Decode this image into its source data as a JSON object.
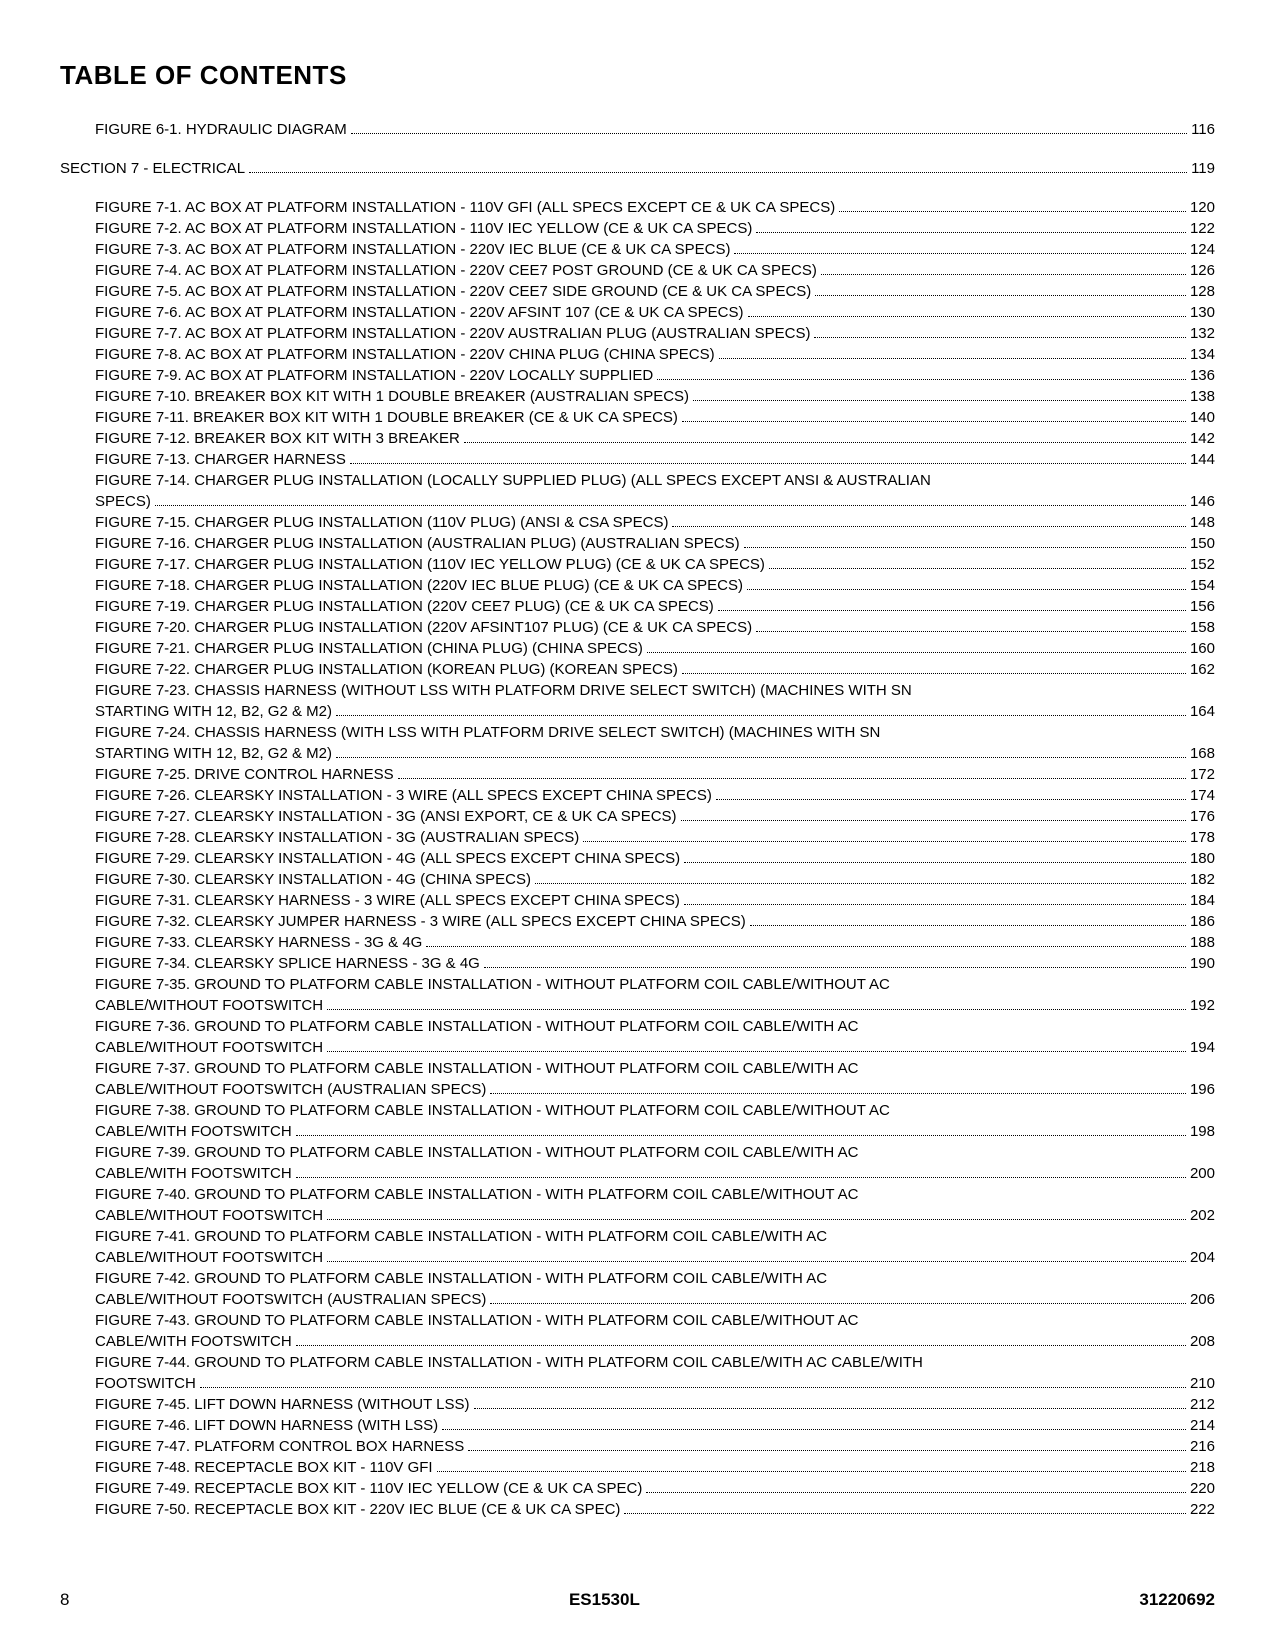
{
  "title": "TABLE OF CONTENTS",
  "entries": [
    {
      "indent": 1,
      "text": "FIGURE 6-1. HYDRAULIC DIAGRAM",
      "page": "116"
    },
    {
      "gap": true
    },
    {
      "indent": 0,
      "text": "SECTION 7 - ELECTRICAL",
      "page": "119"
    },
    {
      "gap": true
    },
    {
      "indent": 1,
      "text": "FIGURE 7-1. AC BOX AT PLATFORM INSTALLATION - 110V GFI (ALL SPECS EXCEPT CE & UK CA SPECS)",
      "page": "120"
    },
    {
      "indent": 1,
      "text": "FIGURE 7-2. AC BOX AT PLATFORM INSTALLATION - 110V IEC YELLOW (CE & UK CA SPECS)",
      "page": "122"
    },
    {
      "indent": 1,
      "text": "FIGURE 7-3. AC BOX AT PLATFORM INSTALLATION - 220V IEC BLUE (CE & UK CA SPECS)",
      "page": "124"
    },
    {
      "indent": 1,
      "text": "FIGURE 7-4. AC BOX AT PLATFORM INSTALLATION - 220V CEE7 POST GROUND (CE & UK CA SPECS)",
      "page": "126"
    },
    {
      "indent": 1,
      "text": "FIGURE 7-5. AC BOX AT PLATFORM INSTALLATION - 220V CEE7 SIDE GROUND (CE & UK CA SPECS)",
      "page": "128"
    },
    {
      "indent": 1,
      "text": "FIGURE 7-6. AC BOX AT PLATFORM INSTALLATION - 220V AFSINT 107 (CE & UK CA SPECS)",
      "page": "130"
    },
    {
      "indent": 1,
      "text": "FIGURE 7-7. AC BOX AT PLATFORM INSTALLATION - 220V AUSTRALIAN PLUG (AUSTRALIAN SPECS)",
      "page": "132"
    },
    {
      "indent": 1,
      "text": "FIGURE 7-8. AC BOX AT PLATFORM INSTALLATION - 220V CHINA PLUG (CHINA SPECS)",
      "page": "134"
    },
    {
      "indent": 1,
      "text": "FIGURE 7-9. AC BOX AT PLATFORM INSTALLATION - 220V LOCALLY SUPPLIED",
      "page": "136"
    },
    {
      "indent": 1,
      "text": "FIGURE 7-10. BREAKER BOX KIT WITH 1 DOUBLE BREAKER (AUSTRALIAN SPECS)",
      "page": "138"
    },
    {
      "indent": 1,
      "text": "FIGURE 7-11. BREAKER BOX KIT WITH 1 DOUBLE BREAKER (CE & UK CA SPECS)",
      "page": "140"
    },
    {
      "indent": 1,
      "text": "FIGURE 7-12. BREAKER BOX KIT WITH 3 BREAKER",
      "page": "142"
    },
    {
      "indent": 1,
      "text": "FIGURE 7-13. CHARGER HARNESS",
      "page": "144"
    },
    {
      "indent": 1,
      "wrap": true,
      "line1": "FIGURE 7-14. CHARGER PLUG INSTALLATION (LOCALLY SUPPLIED PLUG) (ALL SPECS EXCEPT ANSI & AUSTRALIAN",
      "line2": "SPECS)",
      "page": "146"
    },
    {
      "indent": 1,
      "text": "FIGURE 7-15. CHARGER PLUG INSTALLATION (110V PLUG) (ANSI & CSA SPECS)",
      "page": "148"
    },
    {
      "indent": 1,
      "text": "FIGURE 7-16. CHARGER PLUG INSTALLATION (AUSTRALIAN PLUG) (AUSTRALIAN SPECS)",
      "page": "150"
    },
    {
      "indent": 1,
      "text": "FIGURE 7-17. CHARGER PLUG INSTALLATION (110V IEC YELLOW PLUG) (CE & UK CA SPECS)",
      "page": "152"
    },
    {
      "indent": 1,
      "text": "FIGURE 7-18. CHARGER PLUG INSTALLATION (220V IEC BLUE PLUG) (CE & UK CA SPECS)",
      "page": "154"
    },
    {
      "indent": 1,
      "text": "FIGURE 7-19. CHARGER PLUG INSTALLATION (220V CEE7 PLUG) (CE & UK CA SPECS)",
      "page": "156"
    },
    {
      "indent": 1,
      "text": "FIGURE 7-20. CHARGER PLUG INSTALLATION (220V AFSINT107 PLUG) (CE & UK CA SPECS)",
      "page": "158"
    },
    {
      "indent": 1,
      "text": "FIGURE 7-21. CHARGER PLUG INSTALLATION (CHINA PLUG) (CHINA SPECS)",
      "page": "160"
    },
    {
      "indent": 1,
      "text": "FIGURE 7-22. CHARGER PLUG INSTALLATION (KOREAN PLUG) (KOREAN SPECS)",
      "page": "162"
    },
    {
      "indent": 1,
      "wrap": true,
      "line1": "FIGURE 7-23. CHASSIS HARNESS (WITHOUT LSS WITH PLATFORM DRIVE SELECT SWITCH) (MACHINES WITH SN",
      "line2": "STARTING WITH 12, B2, G2 & M2)",
      "page": "164"
    },
    {
      "indent": 1,
      "wrap": true,
      "line1": "FIGURE 7-24. CHASSIS HARNESS (WITH LSS WITH PLATFORM DRIVE SELECT SWITCH) (MACHINES WITH SN",
      "line2": "STARTING WITH 12, B2, G2 & M2)",
      "page": "168"
    },
    {
      "indent": 1,
      "text": "FIGURE 7-25. DRIVE CONTROL HARNESS",
      "page": "172"
    },
    {
      "indent": 1,
      "text": "FIGURE 7-26. CLEARSKY INSTALLATION - 3 WIRE (ALL SPECS EXCEPT CHINA SPECS)",
      "page": "174"
    },
    {
      "indent": 1,
      "text": "FIGURE 7-27. CLEARSKY INSTALLATION - 3G (ANSI EXPORT, CE & UK CA SPECS)",
      "page": "176"
    },
    {
      "indent": 1,
      "text": "FIGURE 7-28. CLEARSKY INSTALLATION - 3G (AUSTRALIAN SPECS)",
      "page": "178"
    },
    {
      "indent": 1,
      "text": "FIGURE 7-29. CLEARSKY INSTALLATION - 4G (ALL SPECS EXCEPT CHINA SPECS)",
      "page": "180"
    },
    {
      "indent": 1,
      "text": "FIGURE 7-30. CLEARSKY INSTALLATION - 4G (CHINA SPECS)",
      "page": "182"
    },
    {
      "indent": 1,
      "text": "FIGURE 7-31. CLEARSKY HARNESS - 3 WIRE (ALL SPECS EXCEPT CHINA SPECS)",
      "page": "184"
    },
    {
      "indent": 1,
      "text": "FIGURE 7-32. CLEARSKY JUMPER HARNESS - 3 WIRE (ALL SPECS EXCEPT CHINA SPECS)",
      "page": "186"
    },
    {
      "indent": 1,
      "text": "FIGURE 7-33. CLEARSKY HARNESS - 3G & 4G",
      "page": "188"
    },
    {
      "indent": 1,
      "text": "FIGURE 7-34. CLEARSKY SPLICE HARNESS - 3G & 4G",
      "page": "190"
    },
    {
      "indent": 1,
      "wrap": true,
      "line1": "FIGURE 7-35. GROUND TO PLATFORM CABLE INSTALLATION - WITHOUT PLATFORM COIL CABLE/WITHOUT AC",
      "line2": "CABLE/WITHOUT FOOTSWITCH",
      "page": "192"
    },
    {
      "indent": 1,
      "wrap": true,
      "line1": "FIGURE 7-36. GROUND TO PLATFORM CABLE INSTALLATION - WITHOUT PLATFORM COIL CABLE/WITH AC",
      "line2": "CABLE/WITHOUT FOOTSWITCH",
      "page": "194"
    },
    {
      "indent": 1,
      "wrap": true,
      "line1": "FIGURE 7-37. GROUND TO PLATFORM CABLE INSTALLATION - WITHOUT PLATFORM COIL CABLE/WITH AC",
      "line2": "CABLE/WITHOUT FOOTSWITCH (AUSTRALIAN SPECS)",
      "page": "196"
    },
    {
      "indent": 1,
      "wrap": true,
      "line1": "FIGURE 7-38. GROUND TO PLATFORM CABLE INSTALLATION - WITHOUT PLATFORM COIL CABLE/WITHOUT AC",
      "line2": "CABLE/WITH FOOTSWITCH",
      "page": "198"
    },
    {
      "indent": 1,
      "wrap": true,
      "line1": "FIGURE 7-39. GROUND TO PLATFORM CABLE INSTALLATION - WITHOUT PLATFORM COIL CABLE/WITH AC",
      "line2": "CABLE/WITH FOOTSWITCH",
      "page": "200"
    },
    {
      "indent": 1,
      "wrap": true,
      "line1": "FIGURE 7-40. GROUND TO PLATFORM CABLE INSTALLATION - WITH PLATFORM COIL CABLE/WITHOUT AC",
      "line2": "CABLE/WITHOUT FOOTSWITCH",
      "page": "202"
    },
    {
      "indent": 1,
      "wrap": true,
      "line1": "FIGURE 7-41. GROUND TO PLATFORM CABLE INSTALLATION - WITH PLATFORM COIL CABLE/WITH AC",
      "line2": "CABLE/WITHOUT FOOTSWITCH",
      "page": "204"
    },
    {
      "indent": 1,
      "wrap": true,
      "line1": "FIGURE 7-42. GROUND TO PLATFORM CABLE INSTALLATION - WITH PLATFORM COIL CABLE/WITH AC",
      "line2": "CABLE/WITHOUT FOOTSWITCH (AUSTRALIAN SPECS)",
      "page": "206"
    },
    {
      "indent": 1,
      "wrap": true,
      "line1": "FIGURE 7-43. GROUND TO PLATFORM CABLE INSTALLATION - WITH PLATFORM COIL CABLE/WITHOUT AC",
      "line2": "CABLE/WITH FOOTSWITCH",
      "page": "208"
    },
    {
      "indent": 1,
      "wrap": true,
      "line1": "FIGURE 7-44. GROUND TO PLATFORM CABLE INSTALLATION - WITH PLATFORM COIL CABLE/WITH AC CABLE/WITH",
      "line2": "FOOTSWITCH",
      "page": "210"
    },
    {
      "indent": 1,
      "text": "FIGURE 7-45. LIFT DOWN HARNESS (WITHOUT LSS)",
      "page": "212"
    },
    {
      "indent": 1,
      "text": "FIGURE 7-46. LIFT DOWN HARNESS (WITH LSS)",
      "page": "214"
    },
    {
      "indent": 1,
      "text": "FIGURE 7-47. PLATFORM CONTROL BOX HARNESS",
      "page": "216"
    },
    {
      "indent": 1,
      "text": "FIGURE 7-48. RECEPTACLE BOX KIT - 110V GFI",
      "page": "218"
    },
    {
      "indent": 1,
      "text": "FIGURE 7-49. RECEPTACLE BOX KIT - 110V IEC YELLOW (CE & UK CA SPEC)",
      "page": "220"
    },
    {
      "indent": 1,
      "text": "FIGURE 7-50. RECEPTACLE BOX KIT - 220V IEC BLUE (CE & UK CA SPEC)",
      "page": "222"
    }
  ],
  "footer": {
    "page": "8",
    "model": "ES1530L",
    "docnum": "31220692"
  }
}
